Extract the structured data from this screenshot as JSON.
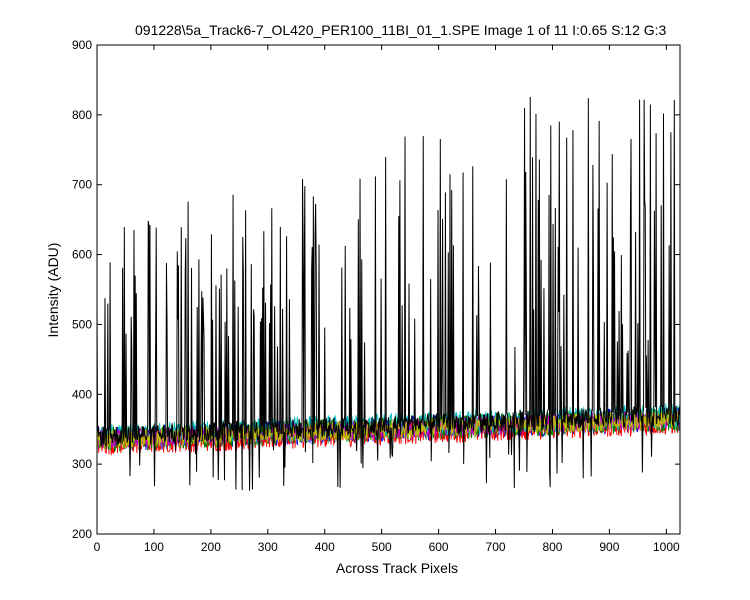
{
  "chart_data": {
    "type": "line",
    "title": "091228\\5a_Track6-7_OL420_PER100_11BI_01_1.SPE  Image 1 of 11  I:0.65  S:12  G:3",
    "xlabel": "Across Track Pixels",
    "ylabel": "Intensity (ADU)",
    "xlim": [
      0,
      1024
    ],
    "ylim": [
      200,
      900
    ],
    "xticks": [
      "0",
      "100",
      "200",
      "300",
      "400",
      "500",
      "600",
      "700",
      "800",
      "900",
      "1000"
    ],
    "yticks": [
      "200",
      "300",
      "400",
      "500",
      "600",
      "700",
      "800",
      "900"
    ],
    "grid": false,
    "legend": "none",
    "series": [
      {
        "color": "#000000",
        "baseline": 350,
        "noise": 15,
        "spike_max": 830,
        "spike_min": 260,
        "description_ref": "high-amplitude spiky trace"
      },
      {
        "color": "#0000ff",
        "baseline": 345,
        "noise": 18
      },
      {
        "color": "#ff0000",
        "baseline": 340,
        "noise": 18
      },
      {
        "color": "#008000",
        "baseline": 345,
        "noise": 18
      },
      {
        "color": "#00bfbf",
        "baseline": 350,
        "noise": 18
      },
      {
        "color": "#bf00bf",
        "baseline": 345,
        "noise": 14
      },
      {
        "color": "#bfbf00",
        "baseline": 345,
        "noise": 14
      }
    ],
    "baseline_trend": {
      "x": [
        0,
        1024
      ],
      "y": [
        335,
        365
      ]
    }
  }
}
